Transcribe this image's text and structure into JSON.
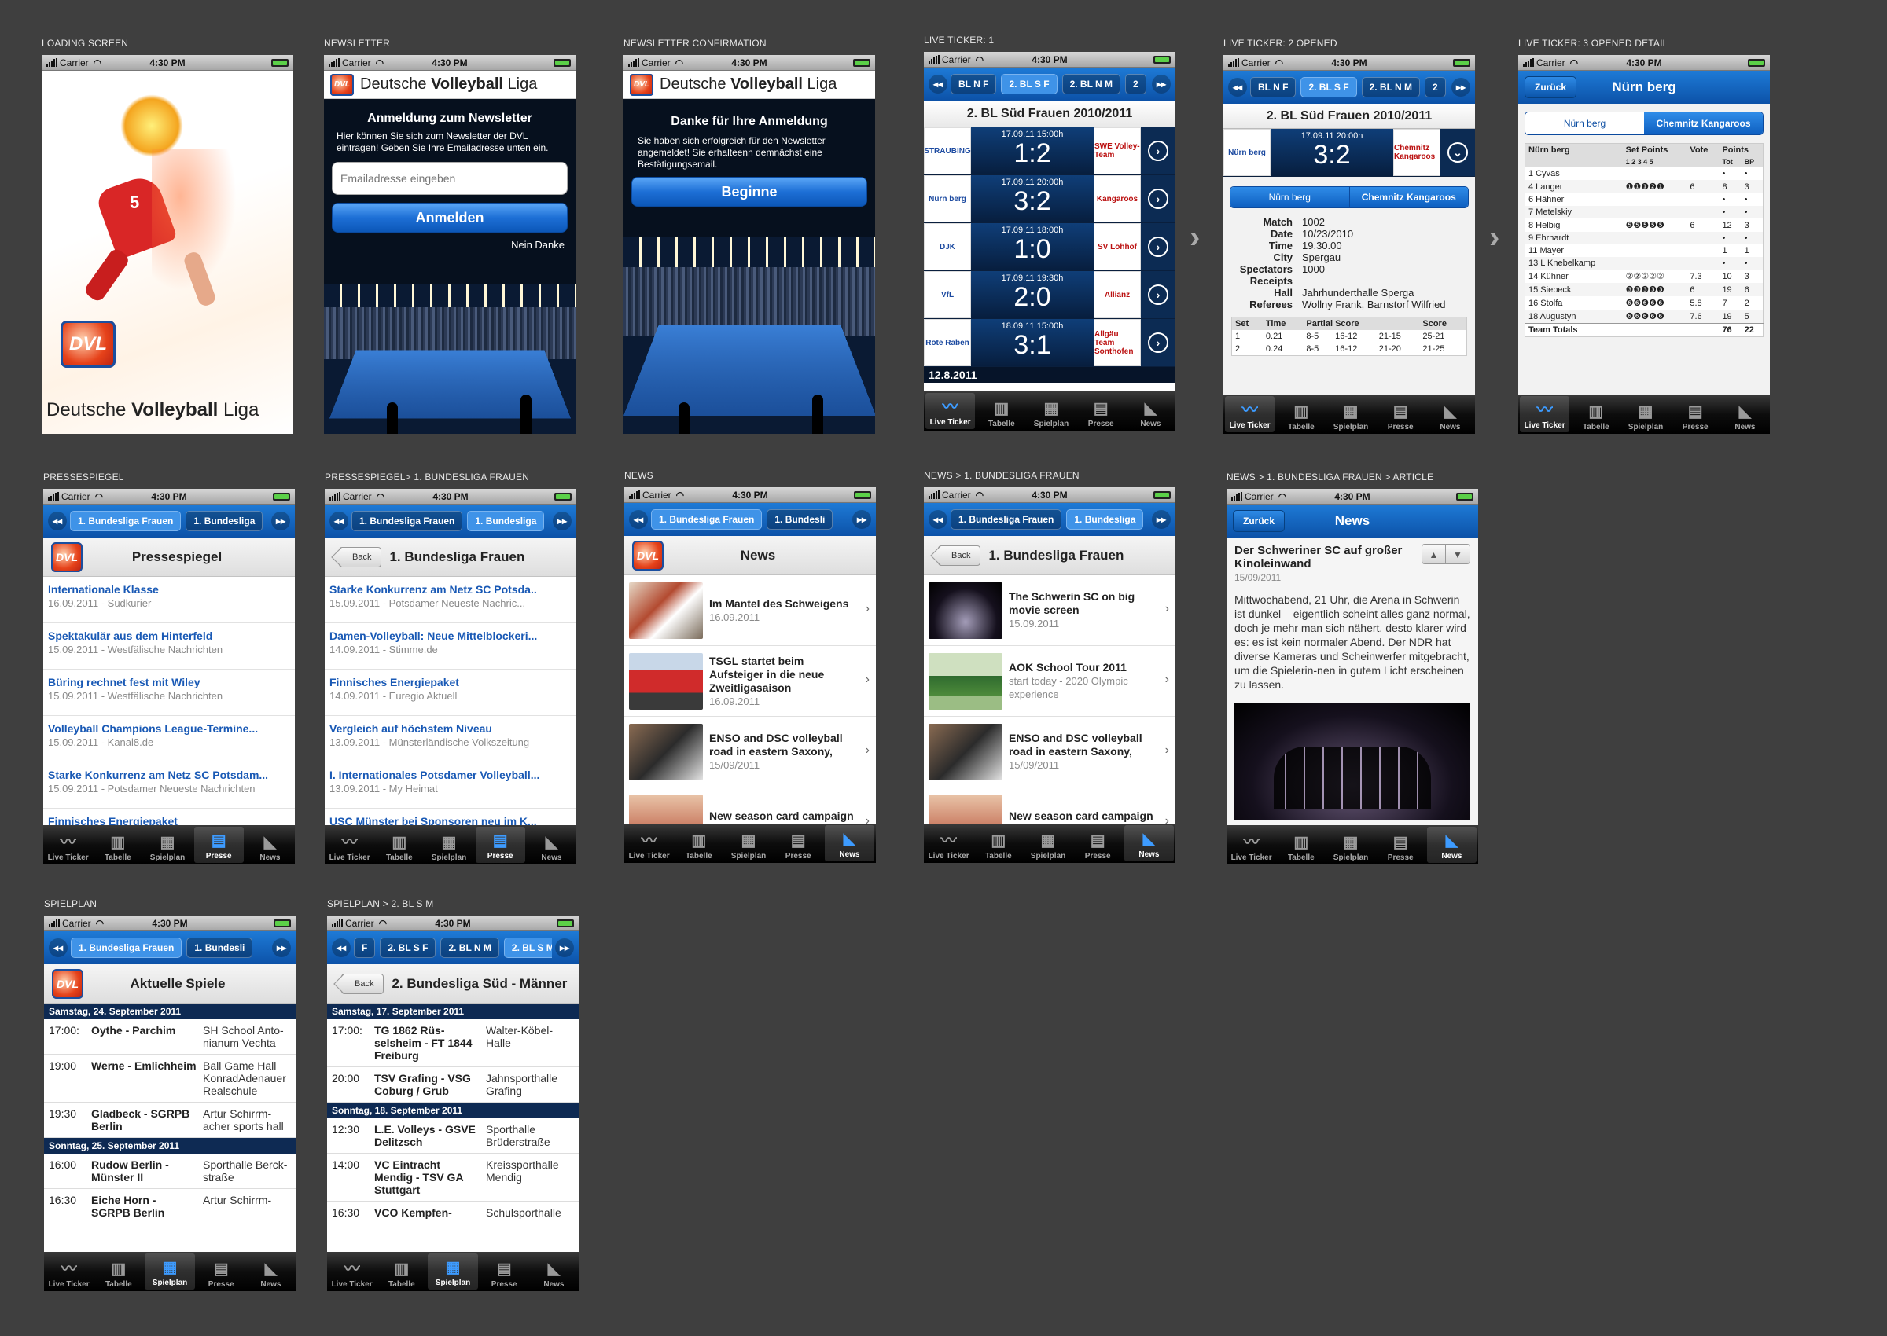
{
  "status": {
    "carrier": "Carrier",
    "time": "4:30 PM"
  },
  "tabs": [
    "Live Ticker",
    "Tabelle",
    "Spielplan",
    "Presse",
    "News"
  ],
  "tab_icons": [
    "line-chart-icon",
    "bar-chart-icon",
    "calendar-grid-icon",
    "newspaper-icon",
    "dvl-logo-icon"
  ],
  "app_name_regular": "Deutsche",
  "app_name_bold": "Volleyball",
  "app_name_end": "Liga",
  "logo_text": "DVL",
  "colors": {
    "accent": "#1565c8",
    "dark_navy": "#0e2a53",
    "link": "#1959b5"
  },
  "screens": {
    "loading": {
      "caption": "LOADING SCREEN",
      "jersey_number": "5"
    },
    "newsletter": {
      "caption": "NEWSLETTER",
      "heading": "Anmeldung zum Newsletter",
      "body": "Hier können Sie sich zum Newsletter der DVL eintragen! Geben Sie Ihre Emailadresse unten ein.",
      "email_placeholder": "Emailadresse eingeben",
      "submit": "Anmelden",
      "decline": "Nein Danke"
    },
    "newsletter_confirm": {
      "caption": "NEWSLETTER CONFIRMATION",
      "heading": "Danke für Ihre Anmeldung",
      "body": "Sie haben sich erfolgreich für den Newsletter angemeldet! Sie erhalteenn demnächst eine Bestätigungsemail.",
      "start": "Beginne"
    },
    "live1": {
      "caption": "LIVE TICKER: 1",
      "segs": [
        "BL N F",
        "2. BL S F",
        "2. BL N M",
        "2"
      ],
      "title": "2. BL Süd Frauen 2010/2011",
      "rows": [
        {
          "home": "STRAUBING",
          "date": "17.09.11 15:00h",
          "score": "1:2",
          "away": "SWE Volley-Team"
        },
        {
          "home": "Nürn berg",
          "date": "17.09.11 20:00h",
          "score": "3:2",
          "away": "Kangaroos"
        },
        {
          "home": "DJK",
          "date": "17.09.11 18:00h",
          "score": "1:0",
          "away": "SV Lohhof"
        },
        {
          "home": "VfL",
          "date": "17.09.11 19:30h",
          "score": "2:0",
          "away": "Allianz"
        },
        {
          "home": "Rote Raben",
          "date": "18.09.11 15:00h",
          "score": "3:1",
          "away": "Allgäu Team Sonthofen"
        }
      ],
      "date_strip": "12.8.2011"
    },
    "live2": {
      "caption": "LIVE TICKER: 2 OPENED",
      "segs": [
        "BL N F",
        "2. BL S F",
        "2. BL N M",
        "2"
      ],
      "title": "2. BL Süd Frauen 2010/2011",
      "date": "17.09.11 20:00h",
      "score": "3:2",
      "team_home": "Nürn berg",
      "team_away": "Chemnitz Kangaroos",
      "details": [
        {
          "k": "Match",
          "v": "1002"
        },
        {
          "k": "Date",
          "v": "10/23/2010"
        },
        {
          "k": "Time",
          "v": "19.30.00"
        },
        {
          "k": "City",
          "v": "Spergau"
        },
        {
          "k": "Spectators",
          "v": "1000"
        },
        {
          "k": "Receipts",
          "v": ""
        },
        {
          "k": "Hall",
          "v": "Jahrhunderthalle Sperga"
        },
        {
          "k": "Referees",
          "v": "Wollny Frank, Barnstorf Wilfried"
        }
      ],
      "set_headers": [
        "Set",
        "Time",
        "Partial Score",
        "",
        "Score"
      ],
      "sets": [
        [
          "1",
          "0.21",
          "8-5",
          "16-12",
          "21-15",
          "25-21"
        ],
        [
          "2",
          "0.24",
          "8-5",
          "16-12",
          "21-20",
          "21-25"
        ]
      ]
    },
    "live3": {
      "caption": "LIVE TICKER: 3 OPENED DETAIL",
      "back": "Zurück",
      "title": "Nürn berg",
      "toggle": [
        "Nürn berg",
        "Chemnitz Kangaroos"
      ],
      "head": [
        "Nürn berg",
        "Set Points",
        "Vote",
        "Points"
      ],
      "subhead": [
        "1 2 3 4 5",
        "Tot",
        "BP"
      ],
      "players": [
        {
          "n": "1 Cyvas",
          "s": "",
          "v": "",
          "t": "•",
          "b": "•"
        },
        {
          "n": "4 Langer",
          "s": "❶❶❶❷❶",
          "v": "6",
          "t": "8",
          "b": "3"
        },
        {
          "n": "6 Hähner",
          "s": "",
          "v": "",
          "t": "•",
          "b": "•"
        },
        {
          "n": "7 Metelskiy",
          "s": "",
          "v": "",
          "t": "•",
          "b": "•"
        },
        {
          "n": "8 Helbig",
          "s": "❺❺❺❺❺",
          "v": "6",
          "t": "12",
          "b": "3"
        },
        {
          "n": "9 Ehrhardt",
          "s": "",
          "v": "",
          "t": "•",
          "b": "•"
        },
        {
          "n": "11 Mayer",
          "s": "",
          "v": "",
          "t": "1",
          "b": "1"
        },
        {
          "n": "13 L Knebelkamp",
          "s": "",
          "v": "",
          "t": "•",
          "b": "•"
        },
        {
          "n": "14 Kühner",
          "s": "②②②②②",
          "v": "7.3",
          "t": "10",
          "b": "3"
        },
        {
          "n": "15 Siebeck",
          "s": "❸❸❸❸❸",
          "v": "6",
          "t": "19",
          "b": "6"
        },
        {
          "n": "16 Stolfa",
          "s": "❻❻❻❻❻",
          "v": "5.8",
          "t": "7",
          "b": "2"
        },
        {
          "n": "18 Augustyn",
          "s": "❻❻❻❻❻",
          "v": "7.6",
          "t": "19",
          "b": "5"
        }
      ],
      "totals": {
        "n": "Team Totals",
        "t": "76",
        "b": "22"
      }
    },
    "presse": {
      "caption": "PRESSESPIEGEL",
      "segs": [
        "1. Bundesliga Frauen",
        "1. Bundesliga"
      ],
      "title": "Pressespiegel",
      "items": [
        {
          "t": "Internationale Klasse",
          "m": "16.09.2011 - Südkurier"
        },
        {
          "t": "Spektakulär aus dem Hinterfeld",
          "m": "15.09.2011 - Westfälische Nachrichten"
        },
        {
          "t": "Büring rechnet fest mit Wiley",
          "m": "15.09.2011 - Westfälische Nachrichten"
        },
        {
          "t": "Volleyball Champions League-Termine...",
          "m": "15.09.2011 - Kanal8.de"
        },
        {
          "t": "Starke Konkurrenz am Netz SC Potsdam...",
          "m": "15.09.2011 - Potsdamer Neueste Nachrichten"
        },
        {
          "t": "Finnisches Energiepaket",
          "m": ""
        }
      ]
    },
    "presse2": {
      "caption": "PRESSESPIEGEL> 1. BUNDESLIGA FRAUEN",
      "segs": [
        "1. Bundesliga Frauen",
        "1. Bundesliga"
      ],
      "back": "Back",
      "title": "1. Bundesliga Frauen",
      "items": [
        {
          "t": "Starke Konkurrenz am Netz SC Potsda..",
          "m": "15.09.2011 - Potsdamer Neueste Nachric..."
        },
        {
          "t": "Damen-Volleyball: Neue Mittelblockeri...",
          "m": "14.09.2011 - Stimme.de"
        },
        {
          "t": "Finnisches Energiepaket",
          "m": "14.09.2011 - Euregio Aktuell"
        },
        {
          "t": "Vergleich auf höchstem Niveau",
          "m": "13.09.2011 - Münsterländische Volkszeitung"
        },
        {
          "t": "I. Internationales Potsdamer Volleyball...",
          "m": "13.09.2011 - My Heimat"
        },
        {
          "t": "USC Münster bei Sponsoren neu im K...",
          "m": ""
        }
      ]
    },
    "news": {
      "caption": "NEWS",
      "segs": [
        "1. Bundesliga Frauen",
        "1. Bundesli"
      ],
      "title": "News",
      "items": [
        {
          "t": "Im Mantel des Schweigens",
          "m": "16.09.2011"
        },
        {
          "t": "TSGL startet beim Aufsteiger in die neue Zweitligasaison",
          "m": "16.09.2011"
        },
        {
          "t": "ENSO and DSC volleyball road in eastern Saxony,",
          "m": "15/09/2011"
        },
        {
          "t": "New season card campaign of the Red",
          "m": ""
        }
      ]
    },
    "news2": {
      "caption": "NEWS >  1. BUNDESLIGA FRAUEN",
      "segs": [
        "1. Bundesliga Frauen",
        "1. Bundesliga"
      ],
      "back": "Back",
      "title": "1. Bundesliga Frauen",
      "items": [
        {
          "t": "The Schwerin SC on big movie screen",
          "m": "15.09.2011"
        },
        {
          "t": "AOK School Tour 2011",
          "m": "start today - 2020 Olympic experience"
        },
        {
          "t": "ENSO and DSC volleyball road in eastern Saxony,",
          "m": "15/09/2011"
        },
        {
          "t": "New season card campaign of the Red",
          "m": ""
        }
      ]
    },
    "article": {
      "caption": "NEWS > 1. BUNDESLIGA FRAUEN > ARTICLE",
      "back": "Zurück",
      "title": "News",
      "headline": "Der Schweriner SC auf großer Kinoleinwand",
      "date": "15/09/2011",
      "body": "Mittwochabend, 21 Uhr, die Arena in Schwerin ist dunkel – eigentlich scheint alles ganz normal, doch je mehr man sich nähert, desto klarer wird es: es ist kein normaler Abend. Der NDR hat diverse Kameras und Scheinwerfer mitgebracht, um die Spielerin-nen in gutem Licht erscheinen zu lassen."
    },
    "spielplan": {
      "caption": "SPIELPLAN",
      "segs": [
        "1. Bundesliga Frauen",
        "1. Bundesli"
      ],
      "title": "Aktuelle Spiele",
      "groups": [
        {
          "day": "Samstag, 24. September 2011",
          "games": [
            {
              "t": "17:00:",
              "n": "Oythe - Parchim",
              "h": "SH School Anto-nianum Vechta"
            },
            {
              "t": "19:00",
              "n": "Werne - Emlichheim",
              "h": "Ball Game Hall KonradAdenauer Realschule"
            },
            {
              "t": "19:30",
              "n": "Gladbeck - SGRPB Berlin",
              "h": "Artur Schirrm-acher sports hall"
            }
          ]
        },
        {
          "day": "Sonntag, 25. September 2011",
          "games": [
            {
              "t": "16:00",
              "n": "Rudow Berlin - Münster II",
              "h": "Sporthalle Berck-straße"
            },
            {
              "t": "16:30",
              "n": "Eiche Horn - SGRPB Berlin",
              "h": "Artur Schirrm-"
            }
          ]
        }
      ]
    },
    "spielplan2": {
      "caption": "SPIELPLAN > 2. BL S M",
      "segs": [
        "F",
        "2. BL S F",
        "2. BL N M",
        "2. BL S M"
      ],
      "back": "Back",
      "title": "2. Bundesliga Süd - Männer",
      "groups": [
        {
          "day": "Samstag, 17. September 2011",
          "games": [
            {
              "t": "17:00:",
              "n": "TG 1862 Rüs-selsheim - FT 1844 Freiburg",
              "h": "Walter-Köbel-Halle"
            },
            {
              "t": "20:00",
              "n": "TSV Grafing - VSG Coburg / Grub",
              "h": "Jahnsporthalle Grafing"
            }
          ]
        },
        {
          "day": "Sonntag, 18. September 2011",
          "games": [
            {
              "t": "12:30",
              "n": "L.E. Volleys - GSVE Delitzsch",
              "h": "Sporthalle Brüderstraße"
            },
            {
              "t": "14:00",
              "n": "VC Eintracht Mendig - TSV GA Stuttgart",
              "h": "Kreissporthalle Mendig"
            },
            {
              "t": "16:30",
              "n": "VCO Kempfen-",
              "h": "Schulsporthalle"
            }
          ]
        }
      ]
    }
  }
}
